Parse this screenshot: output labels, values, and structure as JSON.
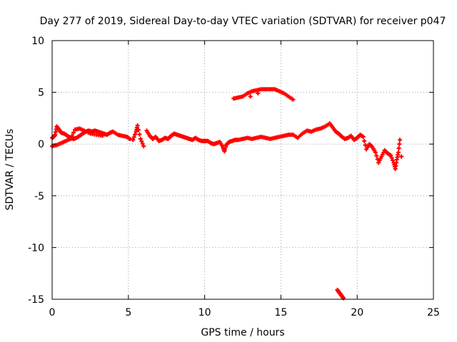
{
  "chart_data": {
    "type": "scatter",
    "title": "Day 277 of 2019, Sidereal Day-to-day VTEC variation (SDTVAR) for receiver p047",
    "xlabel": "GPS time / hours",
    "ylabel": "SDTVAR / TECUs",
    "xlim": [
      0,
      25
    ],
    "ylim": [
      -15,
      10
    ],
    "xticks": [
      "0",
      "5",
      "10",
      "15",
      "20",
      "25"
    ],
    "yticks": [
      "10",
      "5",
      "0",
      "-5",
      "-10",
      "-15"
    ],
    "grid": true,
    "marker": "+",
    "color": "#ff0000",
    "series": [
      {
        "name": "SDTVAR",
        "points": [
          [
            0.0,
            0.6
          ],
          [
            0.1,
            0.7
          ],
          [
            0.2,
            0.9
          ],
          [
            0.3,
            1.7
          ],
          [
            0.4,
            1.5
          ],
          [
            0.5,
            1.3
          ],
          [
            0.6,
            1.1
          ],
          [
            0.8,
            1.0
          ],
          [
            1.0,
            0.8
          ],
          [
            1.2,
            0.6
          ],
          [
            1.4,
            0.5
          ],
          [
            1.6,
            0.6
          ],
          [
            1.8,
            0.8
          ],
          [
            2.0,
            1.0
          ],
          [
            2.2,
            1.2
          ],
          [
            2.4,
            1.3
          ],
          [
            2.6,
            1.2
          ],
          [
            2.8,
            1.3
          ],
          [
            3.0,
            1.2
          ],
          [
            3.2,
            1.1
          ],
          [
            3.4,
            1.0
          ],
          [
            3.6,
            0.9
          ],
          [
            3.8,
            1.1
          ],
          [
            4.0,
            1.2
          ],
          [
            4.3,
            0.9
          ],
          [
            4.6,
            0.8
          ],
          [
            4.9,
            0.7
          ],
          [
            5.1,
            0.5
          ],
          [
            0.0,
            -0.2
          ],
          [
            0.3,
            -0.1
          ],
          [
            0.6,
            0.1
          ],
          [
            0.9,
            0.3
          ],
          [
            1.2,
            0.5
          ],
          [
            1.5,
            1.4
          ],
          [
            1.8,
            1.5
          ],
          [
            2.1,
            1.3
          ],
          [
            2.5,
            1.0
          ],
          [
            2.9,
            0.9
          ],
          [
            3.3,
            0.8
          ],
          [
            5.3,
            0.4
          ],
          [
            5.5,
            1.2
          ],
          [
            5.6,
            1.8
          ],
          [
            5.8,
            0.5
          ],
          [
            6.0,
            -0.2
          ],
          [
            6.2,
            1.3
          ],
          [
            6.4,
            0.8
          ],
          [
            6.6,
            0.5
          ],
          [
            6.8,
            0.7
          ],
          [
            7.0,
            0.3
          ],
          [
            7.2,
            0.4
          ],
          [
            7.4,
            0.6
          ],
          [
            7.6,
            0.5
          ],
          [
            7.8,
            0.8
          ],
          [
            8.0,
            1.0
          ],
          [
            8.2,
            0.9
          ],
          [
            8.4,
            0.8
          ],
          [
            8.6,
            0.7
          ],
          [
            8.8,
            0.6
          ],
          [
            9.0,
            0.5
          ],
          [
            9.2,
            0.4
          ],
          [
            9.4,
            0.6
          ],
          [
            9.6,
            0.4
          ],
          [
            9.8,
            0.3
          ],
          [
            10.0,
            0.3
          ],
          [
            10.2,
            0.3
          ],
          [
            10.4,
            0.1
          ],
          [
            10.6,
            0.0
          ],
          [
            10.8,
            0.1
          ],
          [
            11.0,
            0.2
          ],
          [
            11.2,
            -0.3
          ],
          [
            11.3,
            -0.7
          ],
          [
            11.4,
            -0.1
          ],
          [
            11.6,
            0.2
          ],
          [
            11.8,
            0.3
          ],
          [
            12.0,
            0.4
          ],
          [
            12.2,
            0.4
          ],
          [
            12.5,
            0.5
          ],
          [
            12.8,
            0.6
          ],
          [
            13.1,
            0.5
          ],
          [
            13.4,
            0.6
          ],
          [
            13.7,
            0.7
          ],
          [
            14.0,
            0.6
          ],
          [
            14.3,
            0.5
          ],
          [
            14.6,
            0.6
          ],
          [
            14.9,
            0.7
          ],
          [
            15.2,
            0.8
          ],
          [
            15.5,
            0.9
          ],
          [
            15.8,
            0.9
          ],
          [
            16.1,
            0.6
          ],
          [
            16.4,
            1.0
          ],
          [
            16.7,
            1.3
          ],
          [
            17.0,
            1.2
          ],
          [
            17.3,
            1.4
          ],
          [
            17.6,
            1.5
          ],
          [
            17.9,
            1.7
          ],
          [
            18.2,
            2.0
          ],
          [
            18.4,
            1.6
          ],
          [
            18.6,
            1.2
          ],
          [
            18.8,
            1.0
          ],
          [
            19.0,
            0.7
          ],
          [
            19.2,
            0.5
          ],
          [
            19.4,
            0.6
          ],
          [
            19.6,
            0.8
          ],
          [
            19.8,
            0.4
          ],
          [
            20.0,
            0.6
          ],
          [
            20.2,
            0.9
          ],
          [
            20.4,
            0.7
          ],
          [
            20.6,
            -0.5
          ],
          [
            20.8,
            0.0
          ],
          [
            21.0,
            -0.3
          ],
          [
            21.2,
            -0.8
          ],
          [
            21.4,
            -1.8
          ],
          [
            21.6,
            -1.2
          ],
          [
            21.8,
            -0.6
          ],
          [
            22.0,
            -0.9
          ],
          [
            22.2,
            -1.1
          ],
          [
            22.4,
            -1.8
          ],
          [
            22.5,
            -2.4
          ],
          [
            22.6,
            -1.5
          ],
          [
            22.7,
            -0.8
          ],
          [
            22.8,
            0.4
          ],
          [
            22.9,
            -1.2
          ],
          [
            11.9,
            4.4
          ],
          [
            12.2,
            4.5
          ],
          [
            12.5,
            4.6
          ],
          [
            12.8,
            4.9
          ],
          [
            13.1,
            5.1
          ],
          [
            13.4,
            5.2
          ],
          [
            13.7,
            5.3
          ],
          [
            14.0,
            5.3
          ],
          [
            14.3,
            5.3
          ],
          [
            14.6,
            5.3
          ],
          [
            14.9,
            5.1
          ],
          [
            15.2,
            4.9
          ],
          [
            15.5,
            4.6
          ],
          [
            15.8,
            4.3
          ],
          [
            13.0,
            4.6
          ],
          [
            13.5,
            4.9
          ],
          [
            18.7,
            -14.1
          ],
          [
            18.8,
            -14.3
          ],
          [
            18.9,
            -14.5
          ],
          [
            19.0,
            -14.7
          ],
          [
            19.1,
            -14.9
          ]
        ]
      }
    ]
  }
}
